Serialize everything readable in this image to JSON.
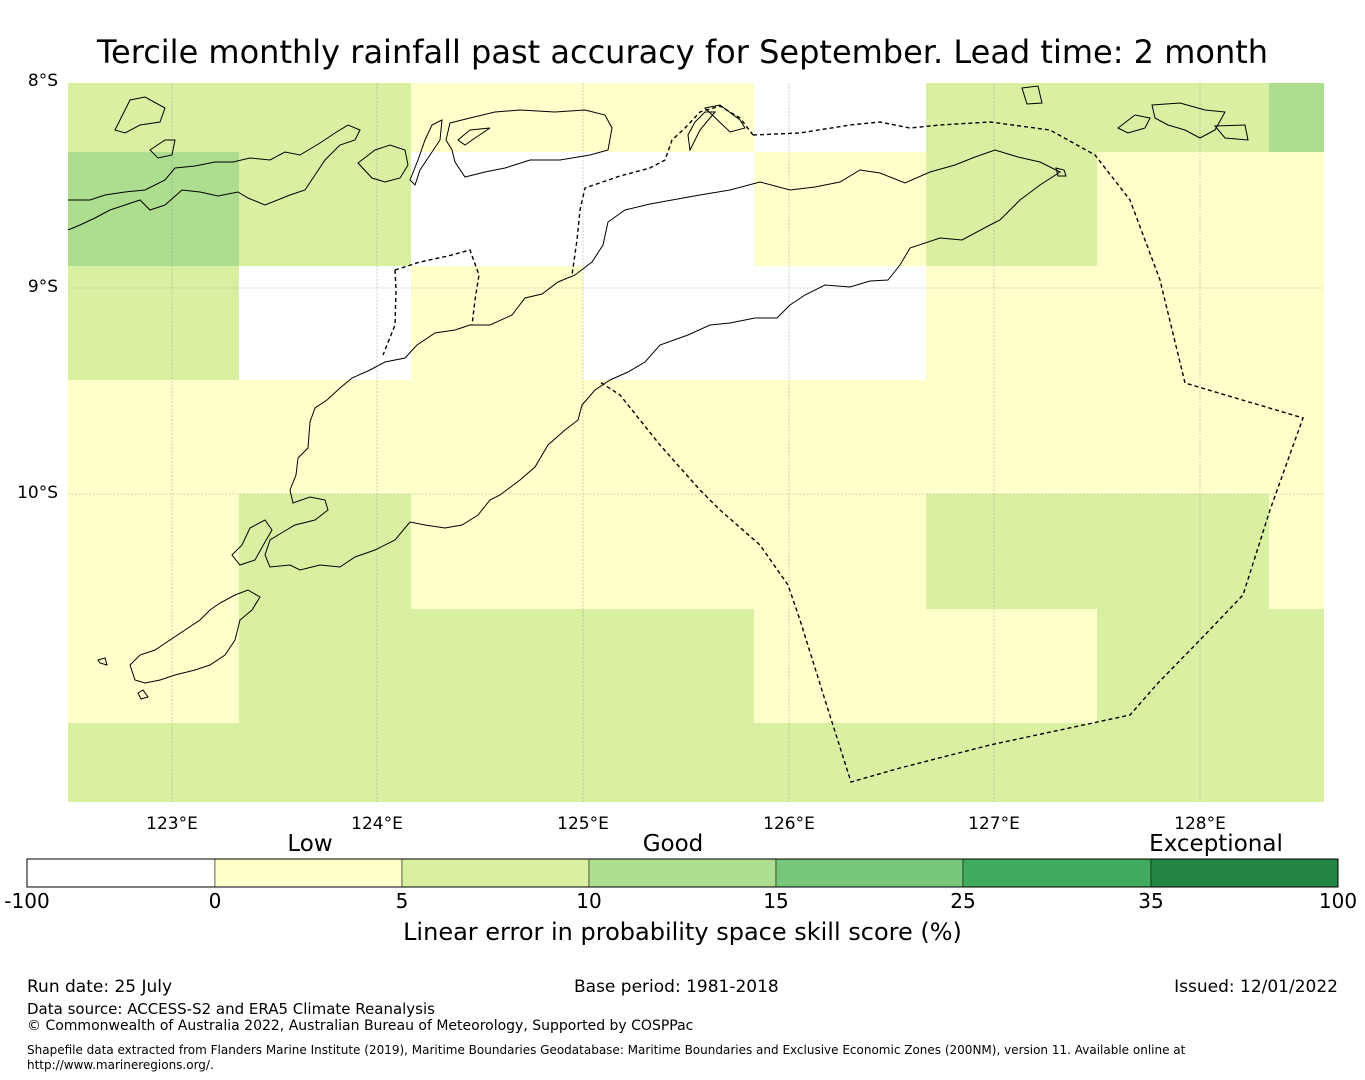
{
  "title": "Tercile monthly rainfall past accuracy for September. Lead time: 2 month",
  "map": {
    "lat_labels": [
      "8°S",
      "9°S",
      "10°S"
    ],
    "lon_labels": [
      "123°E",
      "124°E",
      "125°E",
      "126°E",
      "127°E",
      "128°E"
    ],
    "colors": {
      "white": "#ffffff",
      "low": "#ffffcc",
      "good_5_10": "#d9f0a3",
      "good_10_15": "#addd8e",
      "exc_15_25": "#78c679",
      "exc_25_35": "#41ab5d",
      "exc_35_100": "#238443"
    }
  },
  "colorbar": {
    "categories": [
      "Low",
      "Good",
      "Exceptional"
    ],
    "ticks": [
      "-100",
      "0",
      "5",
      "10",
      "15",
      "25",
      "35",
      "100"
    ],
    "label": "Linear error in probability space skill score (%)"
  },
  "footer": {
    "run_date": "Run date: 25 July",
    "base_period": "Base period: 1981-2018",
    "issued": "Issued: 12/01/2022",
    "data_source": "Data source: ACCESS-S2 and ERA5 Climate Reanalysis",
    "copyright": "© Commonwealth of Australia 2022, Australian Bureau of Meteorology, Supported by COSPPac",
    "shapefile_line1": "Shapefile data extracted from Flanders Marine Institute (2019), Maritime Boundaries Geodatabase: Maritime Boundaries and Exclusive Economic Zones (200NM), version 11. Available online at",
    "shapefile_line2": "http://www.marineregions.org/."
  }
}
